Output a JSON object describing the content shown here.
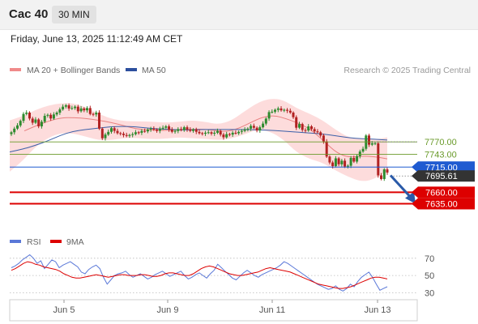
{
  "header": {
    "title": "Cac 40",
    "interval": "30 MIN",
    "timestamp": "Friday, June 13, 2025 11:12:49 AM CET"
  },
  "legend": {
    "ma20_bb": "MA 20 + Bollinger Bands",
    "ma50": "MA 50",
    "credit": "Research © 2025 Trading Central",
    "rsi": "RSI",
    "rsi_ma": "9MA"
  },
  "colors": {
    "up": "#2e8b2e",
    "down": "#b22222",
    "bollinger_fill": "#fddcdc",
    "ma20": "#e88080",
    "ma50": "#3a5fa8",
    "resistance": "#6a9a2a",
    "pivot": "#1f5bd1",
    "support": "#dd0000",
    "last_price": "#333333",
    "rsi": "#5a78d8",
    "rsi_ma": "#dd0000",
    "arrow": "#2a5aa8"
  },
  "chart_data": {
    "type": "candlestick",
    "instrument": "Cac 40",
    "interval": "30 MIN",
    "y_range": [
      7574,
      7903
    ],
    "x_tick_labels": [
      "Jun 5",
      "Jun 9",
      "Jun 11",
      "Jun 13"
    ],
    "levels": [
      {
        "value": 7770.0,
        "label": "7770.00",
        "kind": "resistance"
      },
      {
        "value": 7743.0,
        "label": "7743.00",
        "kind": "resistance"
      },
      {
        "value": 7715.0,
        "label": "7715.00",
        "kind": "pivot"
      },
      {
        "value": 7695.61,
        "label": "7695.61",
        "kind": "last"
      },
      {
        "value": 7660.0,
        "label": "7660.00",
        "kind": "support"
      },
      {
        "value": 7635.0,
        "label": "7635.00",
        "kind": "support"
      }
    ],
    "candles_close": [
      7791,
      7799,
      7806,
      7816,
      7831,
      7834,
      7821,
      7812,
      7819,
      7804,
      7814,
      7827,
      7829,
      7821,
      7830,
      7834,
      7841,
      7847,
      7850,
      7843,
      7844,
      7847,
      7837,
      7843,
      7839,
      7844,
      7831,
      7830,
      7834,
      7799,
      7778,
      7786,
      7792,
      7800,
      7794,
      7789,
      7788,
      7785,
      7783,
      7785,
      7787,
      7791,
      7790,
      7794,
      7793,
      7797,
      7799,
      7797,
      7794,
      7799,
      7801,
      7804,
      7797,
      7792,
      7794,
      7798,
      7796,
      7802,
      7797,
      7794,
      7797,
      7792,
      7789,
      7788,
      7790,
      7791,
      7788,
      7790,
      7794,
      7786,
      7780,
      7787,
      7786,
      7790,
      7789,
      7792,
      7794,
      7797,
      7799,
      7805,
      7801,
      7795,
      7802,
      7810,
      7821,
      7835,
      7836,
      7840,
      7843,
      7839,
      7840,
      7838,
      7834,
      7824,
      7801,
      7809,
      7796,
      7795,
      7804,
      7798,
      7793,
      7791,
      7784,
      7771,
      7738,
      7725,
      7717,
      7734,
      7721,
      7729,
      7716,
      7718,
      7735,
      7727,
      7739,
      7749,
      7755,
      7784,
      7764,
      7767,
      7767,
      7697,
      7689,
      7710,
      7703
    ],
    "ma20_curve": [
      7794,
      7806,
      7816,
      7823,
      7823,
      7821,
      7817,
      7812,
      7805,
      7798,
      7796,
      7795,
      7796,
      7797,
      7798,
      7796,
      7792,
      7798,
      7811,
      7824,
      7828,
      7820,
      7810,
      7795,
      7770,
      7745,
      7736,
      7739,
      7738,
      7733
    ],
    "bb_upper": [
      7817,
      7826,
      7840,
      7850,
      7855,
      7854,
      7844,
      7829,
      7819,
      7815,
      7815,
      7814,
      7812,
      7814,
      7817,
      7814,
      7808,
      7816,
      7836,
      7855,
      7865,
      7862,
      7844,
      7832,
      7818,
      7797,
      7780,
      7776,
      7775,
      7780
    ],
    "bb_lower": [
      7705,
      7729,
      7760,
      7780,
      7790,
      7788,
      7780,
      7773,
      7775,
      7779,
      7778,
      7776,
      7777,
      7780,
      7778,
      7777,
      7774,
      7777,
      7786,
      7797,
      7793,
      7776,
      7748,
      7733,
      7725,
      7708,
      7694,
      7683,
      7688,
      7706
    ],
    "ma50_curve": [
      7748,
      7754,
      7762,
      7772,
      7784,
      7793,
      7797,
      7800,
      7803,
      7804,
      7803,
      7800,
      7798,
      7797,
      7796,
      7797,
      7797,
      7797,
      7797,
      7797,
      7796,
      7795,
      7793,
      7791,
      7789,
      7787,
      7783,
      7779,
      7777,
      7776,
      7774
    ],
    "rsi": {
      "ticks": [
        70,
        50,
        30
      ],
      "y_range": [
        22,
        82
      ],
      "values": [
        59,
        61,
        64,
        68,
        71,
        74,
        70,
        64,
        67,
        58,
        63,
        68,
        66,
        59,
        62,
        64,
        66,
        63,
        60,
        54,
        52,
        57,
        60,
        62,
        58,
        48,
        40,
        45,
        50,
        52,
        53,
        55,
        51,
        48,
        50,
        52,
        49,
        46,
        48,
        51,
        53,
        55,
        52,
        49,
        51,
        53,
        55,
        50,
        46,
        48,
        51,
        53,
        50,
        47,
        52,
        56,
        63,
        59,
        55,
        51,
        47,
        45,
        49,
        53,
        56,
        53,
        50,
        48,
        51,
        53,
        55,
        57,
        59,
        62,
        66,
        64,
        61,
        58,
        55,
        52,
        49,
        46,
        43,
        40,
        38,
        36,
        34,
        35,
        38,
        34,
        32,
        35,
        40,
        37,
        43,
        48,
        51,
        54,
        48,
        40,
        33,
        35,
        37
      ],
      "ma_values": [
        56,
        58,
        61,
        64,
        66,
        65,
        63,
        62,
        60,
        59,
        58,
        57,
        55,
        52,
        50,
        48,
        47,
        47,
        48,
        49,
        50,
        51,
        50,
        49,
        48,
        49,
        50,
        51,
        51,
        50,
        50,
        50,
        51,
        51,
        50,
        49,
        49,
        50,
        52,
        53,
        53,
        52,
        51,
        50,
        50,
        52,
        55,
        58,
        60,
        61,
        60,
        58,
        56,
        54,
        52,
        51,
        50,
        50,
        51,
        52,
        53,
        54,
        56,
        58,
        59,
        58,
        57,
        56,
        55,
        54,
        52,
        50,
        48,
        46,
        44,
        42,
        40,
        39,
        38,
        37,
        36,
        35,
        35,
        36,
        37,
        39,
        41,
        43,
        45,
        47,
        48,
        48,
        47,
        46
      ]
    }
  }
}
